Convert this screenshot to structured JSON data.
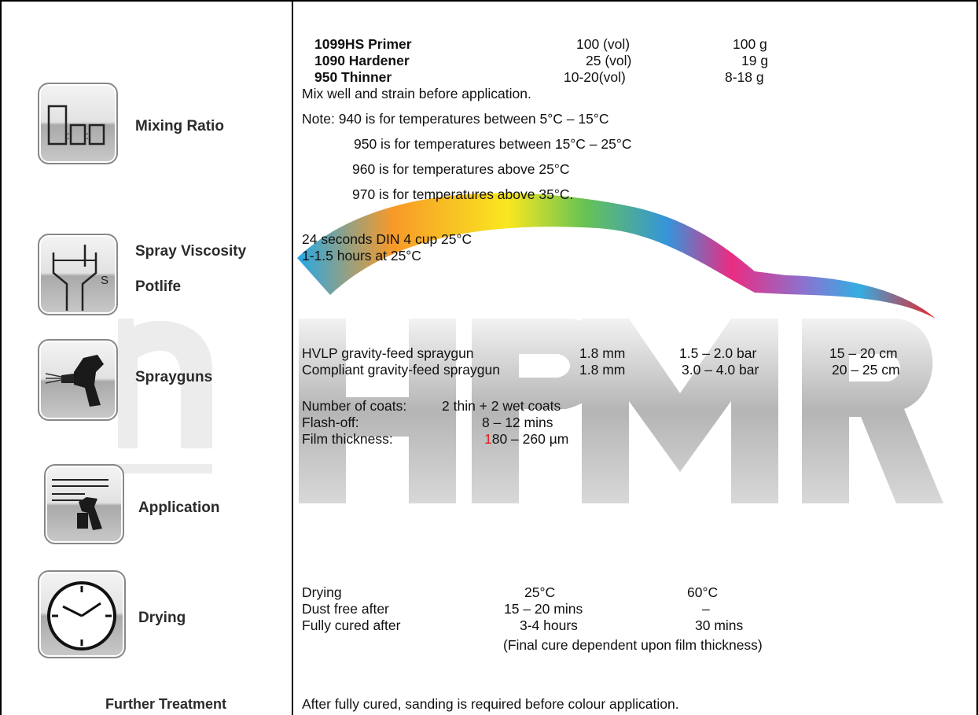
{
  "sections": {
    "mixing": {
      "label": "Mixing Ratio",
      "rows": [
        {
          "product": "1099HS  Primer",
          "vol": "100 (vol)",
          "weight": "100 g"
        },
        {
          "product": "1090  Hardener",
          "vol": "25 (vol)",
          "weight": "19 g"
        },
        {
          "product": "950  Thinner",
          "vol": "10-20(vol)",
          "weight": "8-18 g"
        }
      ],
      "instruction": "Mix well and strain before application.",
      "notes": [
        "Note:  940  is for temperatures between 5°C – 15°C",
        "950 is for temperatures between 15°C – 25°C",
        "960 is for temperatures above 25°C",
        "970 is for temperatures above 35°C."
      ]
    },
    "viscosity": {
      "label": "Spray Viscosity",
      "value": "24 seconds DIN 4 cup 25°C"
    },
    "potlife": {
      "label": "Potlife",
      "value": "1-1.5 hours at 25°C"
    },
    "sprayguns": {
      "label": "Sprayguns",
      "rows": [
        {
          "type": "HVLP gravity-feed spraygun",
          "nozzle": "1.8 mm",
          "pressure": "1.5 – 2.0 bar",
          "distance": "15 – 20 cm"
        },
        {
          "type": "Compliant gravity-feed spraygun",
          "nozzle": "1.8 mm",
          "pressure": "3.0 – 4.0 bar",
          "distance": "20 – 25 cm"
        }
      ]
    },
    "application": {
      "label": "Application",
      "coats_label": "Number of coats:",
      "coats_value": "2 thin + 2 wet coats",
      "flash_label": "Flash-off:",
      "flash_value": "8 – 12 mins",
      "film_label": "Film thickness:",
      "film_value_first": "1",
      "film_value_rest": "80 –  260 µm"
    },
    "drying": {
      "label": "Drying",
      "header": {
        "label": "Drying",
        "t1": "25°C",
        "t2": "60°C"
      },
      "rows": [
        {
          "label": "Dust free after",
          "t1": "15 – 20 mins",
          "t2": "–"
        },
        {
          "label": "Fully cured after",
          "t1": "3-4 hours",
          "t2": "30 mins"
        }
      ],
      "footnote": "(Final cure dependent upon film thickness)"
    },
    "further": {
      "label": "Further Treatment",
      "value": "After fully cured, sanding is required before colour application."
    }
  },
  "watermark": {
    "text": "HPMR"
  },
  "icons": [
    "mixing-ratio-icon",
    "spray-viscosity-icon",
    "spraygun-icon",
    "application-icon",
    "clock-icon"
  ]
}
